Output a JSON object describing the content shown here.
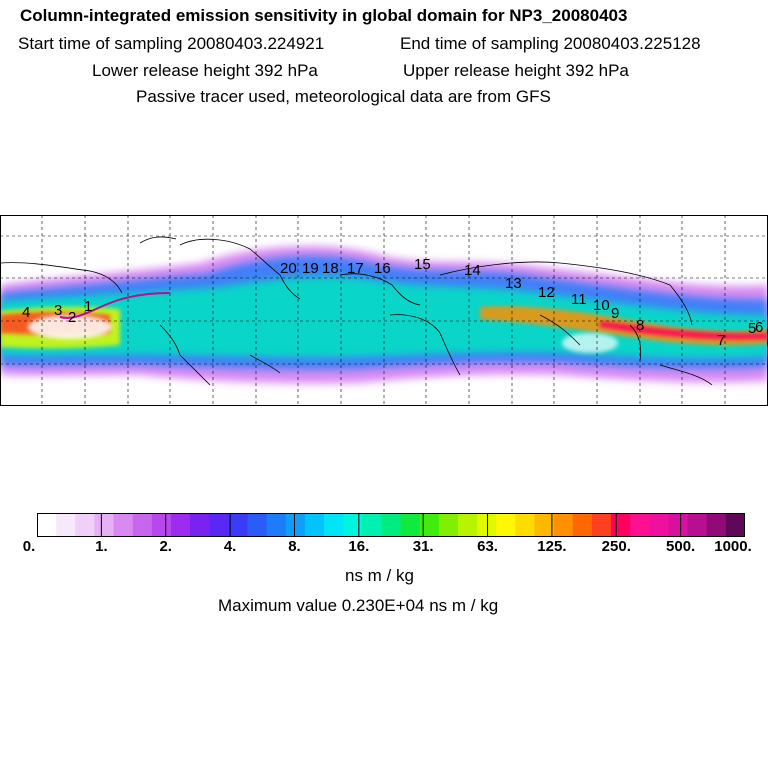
{
  "header": {
    "title": "Column-integrated emission sensitivity in global domain for NP3_20080403",
    "start_time": "Start time of sampling 20080403.224921",
    "end_time": "End time of sampling 20080403.225128",
    "lower_height": "Lower release height  392 hPa",
    "upper_height": "Upper release height  392 hPa",
    "tracer_note": "Passive tracer used, meteorological data are from GFS"
  },
  "map": {
    "trajectory_labels": [
      "4",
      "3",
      "2",
      "1",
      "20",
      "19",
      "18",
      "17",
      "16",
      "15",
      "14",
      "13",
      "12",
      "11",
      "10",
      "9",
      "8",
      "7",
      "6",
      "5"
    ]
  },
  "colorbar": {
    "colors": [
      "#ffffff",
      "#f8e8fb",
      "#f0d0f8",
      "#e6b0f4",
      "#d98af0",
      "#c866ee",
      "#b848ee",
      "#9c2cf0",
      "#7a22f0",
      "#5a28f4",
      "#3c3cf8",
      "#2c5cf8",
      "#1c7cfa",
      "#0ca0fb",
      "#00c4fb",
      "#00e4f6",
      "#00f4e0",
      "#00f0b0",
      "#00ec80",
      "#10ea40",
      "#40ec10",
      "#80f000",
      "#b8f400",
      "#e0f800",
      "#fff800",
      "#ffdc00",
      "#ffb800",
      "#ff9000",
      "#ff6800",
      "#ff4020",
      "#ff0060",
      "#ff1090",
      "#f010a0",
      "#d810a0",
      "#b80e90",
      "#900a78",
      "#600858"
    ],
    "tick_labels": [
      "0.",
      "1.",
      "2.",
      "4.",
      "8.",
      "16.",
      "31.",
      "63.",
      "125.",
      "250.",
      "500.",
      "1000."
    ],
    "units": "ns m / kg",
    "max_value": "Maximum value  0.230E+04 ns m / kg"
  }
}
